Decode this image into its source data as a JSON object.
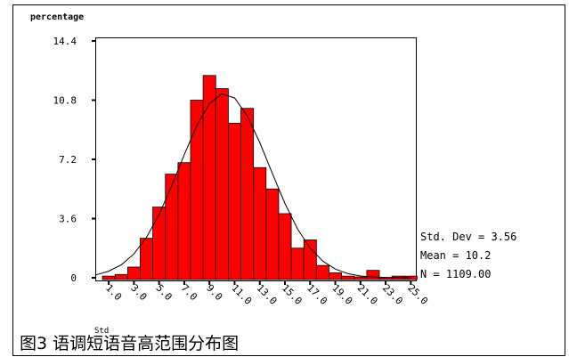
{
  "chart_data": {
    "type": "histogram",
    "y_label": "percentage",
    "x_label": "Std",
    "caption": "图3    语调短语音高范围分布图",
    "categories": [
      1,
      2,
      3,
      4,
      5,
      6,
      7,
      8,
      9,
      10,
      11,
      12,
      13,
      14,
      15,
      16,
      17,
      18,
      19,
      20,
      21,
      22,
      23,
      24,
      25
    ],
    "values": [
      0.1,
      0.2,
      0.65,
      2.4,
      4.3,
      6.3,
      7.0,
      10.8,
      12.3,
      11.5,
      9.4,
      10.3,
      6.7,
      5.4,
      3.9,
      1.8,
      2.3,
      0.75,
      0.3,
      0.1,
      0.05,
      0.45,
      0,
      0.1,
      0.1
    ],
    "color": "#ff0000",
    "curve": {
      "x": [
        0,
        1,
        2,
        3,
        4,
        5,
        6,
        7,
        8,
        9,
        10,
        11,
        12,
        13,
        14,
        15,
        16,
        17,
        18,
        19,
        20,
        21,
        22,
        23,
        24,
        25
      ],
      "y": [
        0.18,
        0.4,
        0.79,
        1.45,
        2.46,
        3.85,
        5.59,
        7.48,
        9.26,
        10.59,
        11.19,
        10.93,
        9.86,
        8.23,
        6.34,
        4.52,
        2.97,
        1.81,
        1.02,
        0.53,
        0.25,
        0.11,
        0.05,
        0.02,
        0.01,
        0
      ]
    },
    "xlim": [
      0,
      25.4
    ],
    "ylim": [
      0,
      14.4
    ],
    "xticks": [
      {
        "value": 1,
        "label": "1.0"
      },
      {
        "value": 3,
        "label": "3.0"
      },
      {
        "value": 5,
        "label": "5.0"
      },
      {
        "value": 7,
        "label": "7.0"
      },
      {
        "value": 9,
        "label": "9.0"
      },
      {
        "value": 11,
        "label": "11.0"
      },
      {
        "value": 13,
        "label": "13.0"
      },
      {
        "value": 15,
        "label": "15.0"
      },
      {
        "value": 17,
        "label": "17.0"
      },
      {
        "value": 19,
        "label": "19.0"
      },
      {
        "value": 21,
        "label": "21.0"
      },
      {
        "value": 23,
        "label": "23.0"
      },
      {
        "value": 25,
        "label": "25.0"
      }
    ],
    "yticks": [
      0,
      3.6,
      7.2,
      10.8,
      14.4
    ],
    "stats": [
      "Std. Dev = 3.56",
      "Mean = 10.2",
      "N = 1109.00"
    ]
  }
}
